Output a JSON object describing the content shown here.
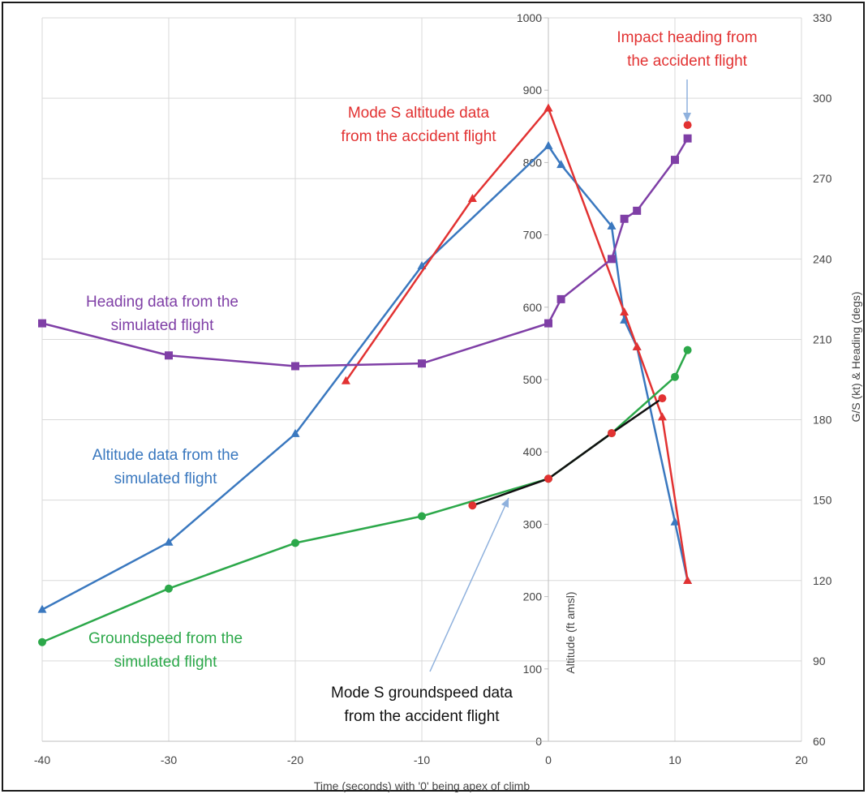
{
  "chart_data": {
    "type": "line",
    "xlabel": "Time (seconds) with '0' being apex of climb",
    "ylabel_left": "Altitude (ft amsl)",
    "ylabel_right": "G/S (kt) & Heading (degs)",
    "xlim": [
      -40,
      20
    ],
    "x_ticks": [
      -40,
      -30,
      -20,
      -10,
      0,
      10,
      20
    ],
    "ylim_left": [
      0,
      1000
    ],
    "y_ticks_left": [
      0,
      100,
      200,
      300,
      400,
      500,
      600,
      700,
      800,
      900,
      1000
    ],
    "ylim_right": [
      60,
      330
    ],
    "y_ticks_right": [
      60,
      90,
      120,
      150,
      180,
      210,
      240,
      270,
      300,
      330
    ],
    "grid": true,
    "series": [
      {
        "key": "alt_sim",
        "axis": "left",
        "color": "#3a78bf",
        "marker": "triangle",
        "points": [
          [
            -40,
            182
          ],
          [
            -30,
            275
          ],
          [
            -20,
            425
          ],
          [
            -10,
            657
          ],
          [
            0,
            823
          ],
          [
            1,
            797
          ],
          [
            5,
            712
          ],
          [
            6,
            582
          ],
          [
            7,
            545
          ],
          [
            10,
            303
          ],
          [
            11,
            222
          ]
        ]
      },
      {
        "key": "alt_acc",
        "axis": "left",
        "color": "#e23232",
        "marker": "triangle",
        "points": [
          [
            -16,
            498
          ],
          [
            -6,
            750
          ],
          [
            0,
            875
          ],
          [
            6,
            593
          ],
          [
            7,
            545
          ],
          [
            9,
            448
          ],
          [
            11,
            222
          ]
        ]
      },
      {
        "key": "hdg_sim",
        "axis": "right",
        "color": "#7f3fa6",
        "marker": "square",
        "points": [
          [
            -40,
            216
          ],
          [
            -30,
            204
          ],
          [
            -20,
            200
          ],
          [
            -10,
            201
          ],
          [
            0,
            216
          ],
          [
            1,
            225
          ],
          [
            5,
            240
          ],
          [
            6,
            255
          ],
          [
            7,
            258
          ],
          [
            10,
            277
          ],
          [
            11,
            285
          ]
        ]
      },
      {
        "key": "gs_sim",
        "axis": "right",
        "color": "#2ca84a",
        "marker": "circle",
        "points": [
          [
            -40,
            97
          ],
          [
            -30,
            117
          ],
          [
            -20,
            134
          ],
          [
            -10,
            144
          ],
          [
            0,
            158
          ],
          [
            5,
            175
          ],
          [
            10,
            196
          ],
          [
            11,
            206
          ]
        ]
      },
      {
        "key": "gs_acc",
        "axis": "right",
        "color": "#111111",
        "marker": "circle",
        "marker_color": "#e23232",
        "points": [
          [
            -6,
            148
          ],
          [
            0,
            158
          ],
          [
            5,
            175
          ],
          [
            9,
            188
          ]
        ]
      },
      {
        "key": "hdg_impact",
        "axis": "right",
        "color": "#e23232",
        "marker": "circle",
        "points": [
          [
            11,
            290
          ]
        ]
      }
    ],
    "annotations": [
      {
        "key": "impact",
        "lines": [
          "Impact heading from",
          "the accident flight"
        ],
        "color": "#e23232"
      },
      {
        "key": "modes_alt",
        "lines": [
          "Mode S altitude data",
          "from the accident flight"
        ],
        "color": "#e23232"
      },
      {
        "key": "hdg_sim",
        "lines": [
          "Heading data from the",
          "simulated flight"
        ],
        "color": "#7f3fa6"
      },
      {
        "key": "alt_sim",
        "lines": [
          "Altitude data from the",
          "simulated flight"
        ],
        "color": "#3a78bf"
      },
      {
        "key": "gs_sim",
        "lines": [
          "Groundspeed from the",
          "simulated flight"
        ],
        "color": "#2ca84a"
      },
      {
        "key": "modes_gs",
        "lines": [
          "Mode S groundspeed data",
          "from the accident flight"
        ],
        "color": "#111111"
      }
    ]
  }
}
